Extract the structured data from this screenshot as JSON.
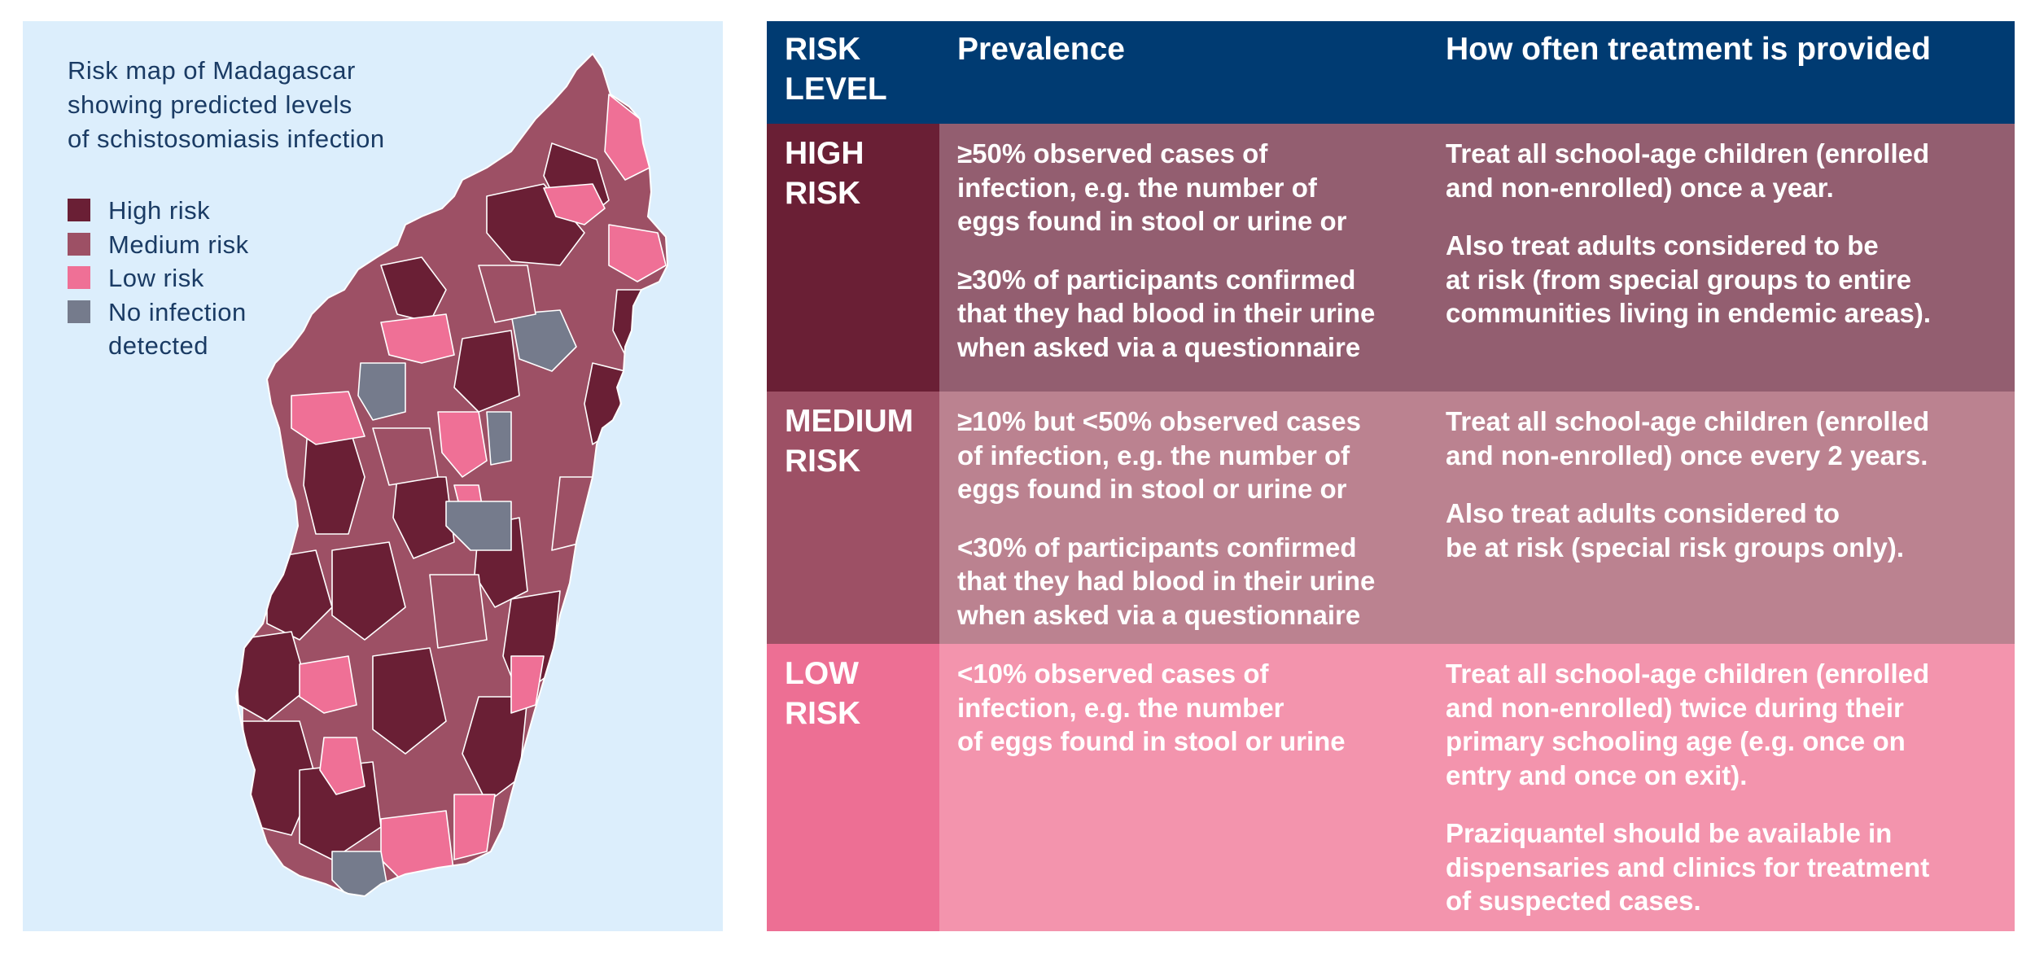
{
  "map": {
    "title_lines": [
      "Risk map of Madagascar",
      "showing predicted levels",
      "of schistosomiasis infection"
    ],
    "colors": {
      "background": "#dceefc",
      "high": "#6a1f35",
      "medium": "#9d5065",
      "low": "#ef7096",
      "none": "#757b8c"
    },
    "legend": [
      {
        "key": "high",
        "label": "High risk",
        "color": "#6a1f35"
      },
      {
        "key": "medium",
        "label": "Medium risk",
        "color": "#9d5065"
      },
      {
        "key": "low",
        "label": "Low risk",
        "color": "#ef7096"
      },
      {
        "key": "none",
        "label": "No infection\ndetected",
        "color": "#757b8c"
      }
    ]
  },
  "table": {
    "header": {
      "risk_level": "RISK\nLEVEL",
      "prevalence": "Prevalence",
      "treatment": "How often treatment is provided"
    },
    "rows": [
      {
        "level": "HIGH\nRISK",
        "prevalence": [
          "≥50% observed cases of\ninfection, e.g. the number of\neggs found in stool or urine or",
          "≥30% of participants confirmed\nthat they had blood in their urine\nwhen asked via a questionnaire"
        ],
        "treatment": [
          "Treat all school-age children (enrolled\nand non-enrolled) once a year.",
          "Also treat adults considered to be\nat risk (from special groups to entire\ncommunities living in endemic areas)."
        ]
      },
      {
        "level": "MEDIUM\nRISK",
        "prevalence": [
          "≥10% but <50% observed cases\nof infection, e.g. the number of\neggs found in stool or urine or",
          "<30% of participants confirmed\nthat they had blood in their urine\nwhen asked via a questionnaire"
        ],
        "treatment": [
          "Treat all school-age children (enrolled\nand non-enrolled) once every 2 years.",
          "Also treat adults considered to\nbe at risk (special risk groups only)."
        ]
      },
      {
        "level": "LOW\nRISK",
        "prevalence": [
          "<10% observed cases of\ninfection, e.g. the number\nof eggs found in stool or urine"
        ],
        "treatment": [
          "Treat all school-age children (enrolled\nand non-enrolled) twice during their\nprimary schooling age (e.g. once on\nentry and once on exit).",
          "Praziquantel should be available in\ndispensaries and clinics for treatment\nof suspected cases."
        ]
      }
    ]
  }
}
